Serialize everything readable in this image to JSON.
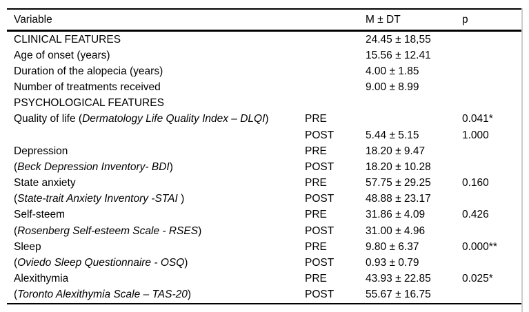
{
  "table": {
    "header": {
      "variable": "Variable",
      "phase": "",
      "mdt": "M ± DT",
      "p": "p"
    },
    "rows": [
      {
        "var_pre": "CLINICAL FEATURES",
        "var_italic": "",
        "var_post": "",
        "phase": "",
        "mdt": "24.45 ± 18,55",
        "p": ""
      },
      {
        "var_pre": "Age of onset (years)",
        "var_italic": "",
        "var_post": "",
        "phase": "",
        "mdt": "15.56 ± 12.41",
        "p": ""
      },
      {
        "var_pre": "Duration of the alopecia (years)",
        "var_italic": "",
        "var_post": "",
        "phase": "",
        "mdt": "4.00 ± 1.85",
        "p": ""
      },
      {
        "var_pre": "Number of treatments received",
        "var_italic": "",
        "var_post": "",
        "phase": "",
        "mdt": "9.00 ± 8.99",
        "p": ""
      },
      {
        "var_pre": "PSYCHOLOGICAL FEATURES",
        "var_italic": "",
        "var_post": "",
        "phase": "",
        "mdt": "",
        "p": ""
      },
      {
        "var_pre": "Quality of life (",
        "var_italic": "Dermatology Life Quality Index – DLQI",
        "var_post": ")",
        "phase": "PRE",
        "mdt": "",
        "p": "0.041*"
      },
      {
        "var_pre": "",
        "var_italic": "",
        "var_post": "",
        "phase": "POST",
        "mdt": "5.44 ± 5.15",
        "p": "1.000"
      },
      {
        "var_pre": "Depression",
        "var_italic": "",
        "var_post": "",
        "phase": "PRE",
        "mdt": "18.20 ± 9.47",
        "p": ""
      },
      {
        "var_pre": "(",
        "var_italic": "Beck Depression Inventory- BDI",
        "var_post": ")",
        "phase": "POST",
        "mdt": "18.20 ± 10.28",
        "p": ""
      },
      {
        "var_pre": "State anxiety",
        "var_italic": "",
        "var_post": "",
        "phase": "PRE",
        "mdt": "57.75 ± 29.25",
        "p": "0.160"
      },
      {
        "var_pre": "(",
        "var_italic": "State-trait Anxiety Inventory -STAI",
        "var_post": " )",
        "phase": "POST",
        "mdt": "48.88 ± 23.17",
        "p": ""
      },
      {
        "var_pre": "Self-steem",
        "var_italic": "",
        "var_post": "",
        "phase": "PRE",
        "mdt": "31.86 ± 4.09",
        "p": "0.426"
      },
      {
        "var_pre": "(",
        "var_italic": "Rosenberg Self-esteem Scale - RSES",
        "var_post": ")",
        "phase": "POST",
        "mdt": "31.00 ± 4.96",
        "p": ""
      },
      {
        "var_pre": "Sleep",
        "var_italic": "",
        "var_post": "",
        "phase": "PRE",
        "mdt": "9.80 ± 6.37",
        "p": "0.000**"
      },
      {
        "var_pre": "(",
        "var_italic": "Oviedo Sleep Questionnaire - OSQ",
        "var_post": ")",
        "phase": "POST",
        "mdt": "0.93 ± 0.79",
        "p": ""
      },
      {
        "var_pre": "Alexithymia",
        "var_italic": "",
        "var_post": "",
        "phase": "PRE",
        "mdt": "43.93 ± 22.85",
        "p": "0.025*"
      },
      {
        "var_pre": "(",
        "var_italic": "Toronto Alexithymia Scale – TAS-20",
        "var_post": ")",
        "phase": "POST",
        "mdt": "55.67 ± 16.75",
        "p": ""
      }
    ]
  },
  "colors": {
    "text": "#000000",
    "border": "#000000",
    "background": "#ffffff",
    "page_edge_line": "#cccccc"
  }
}
